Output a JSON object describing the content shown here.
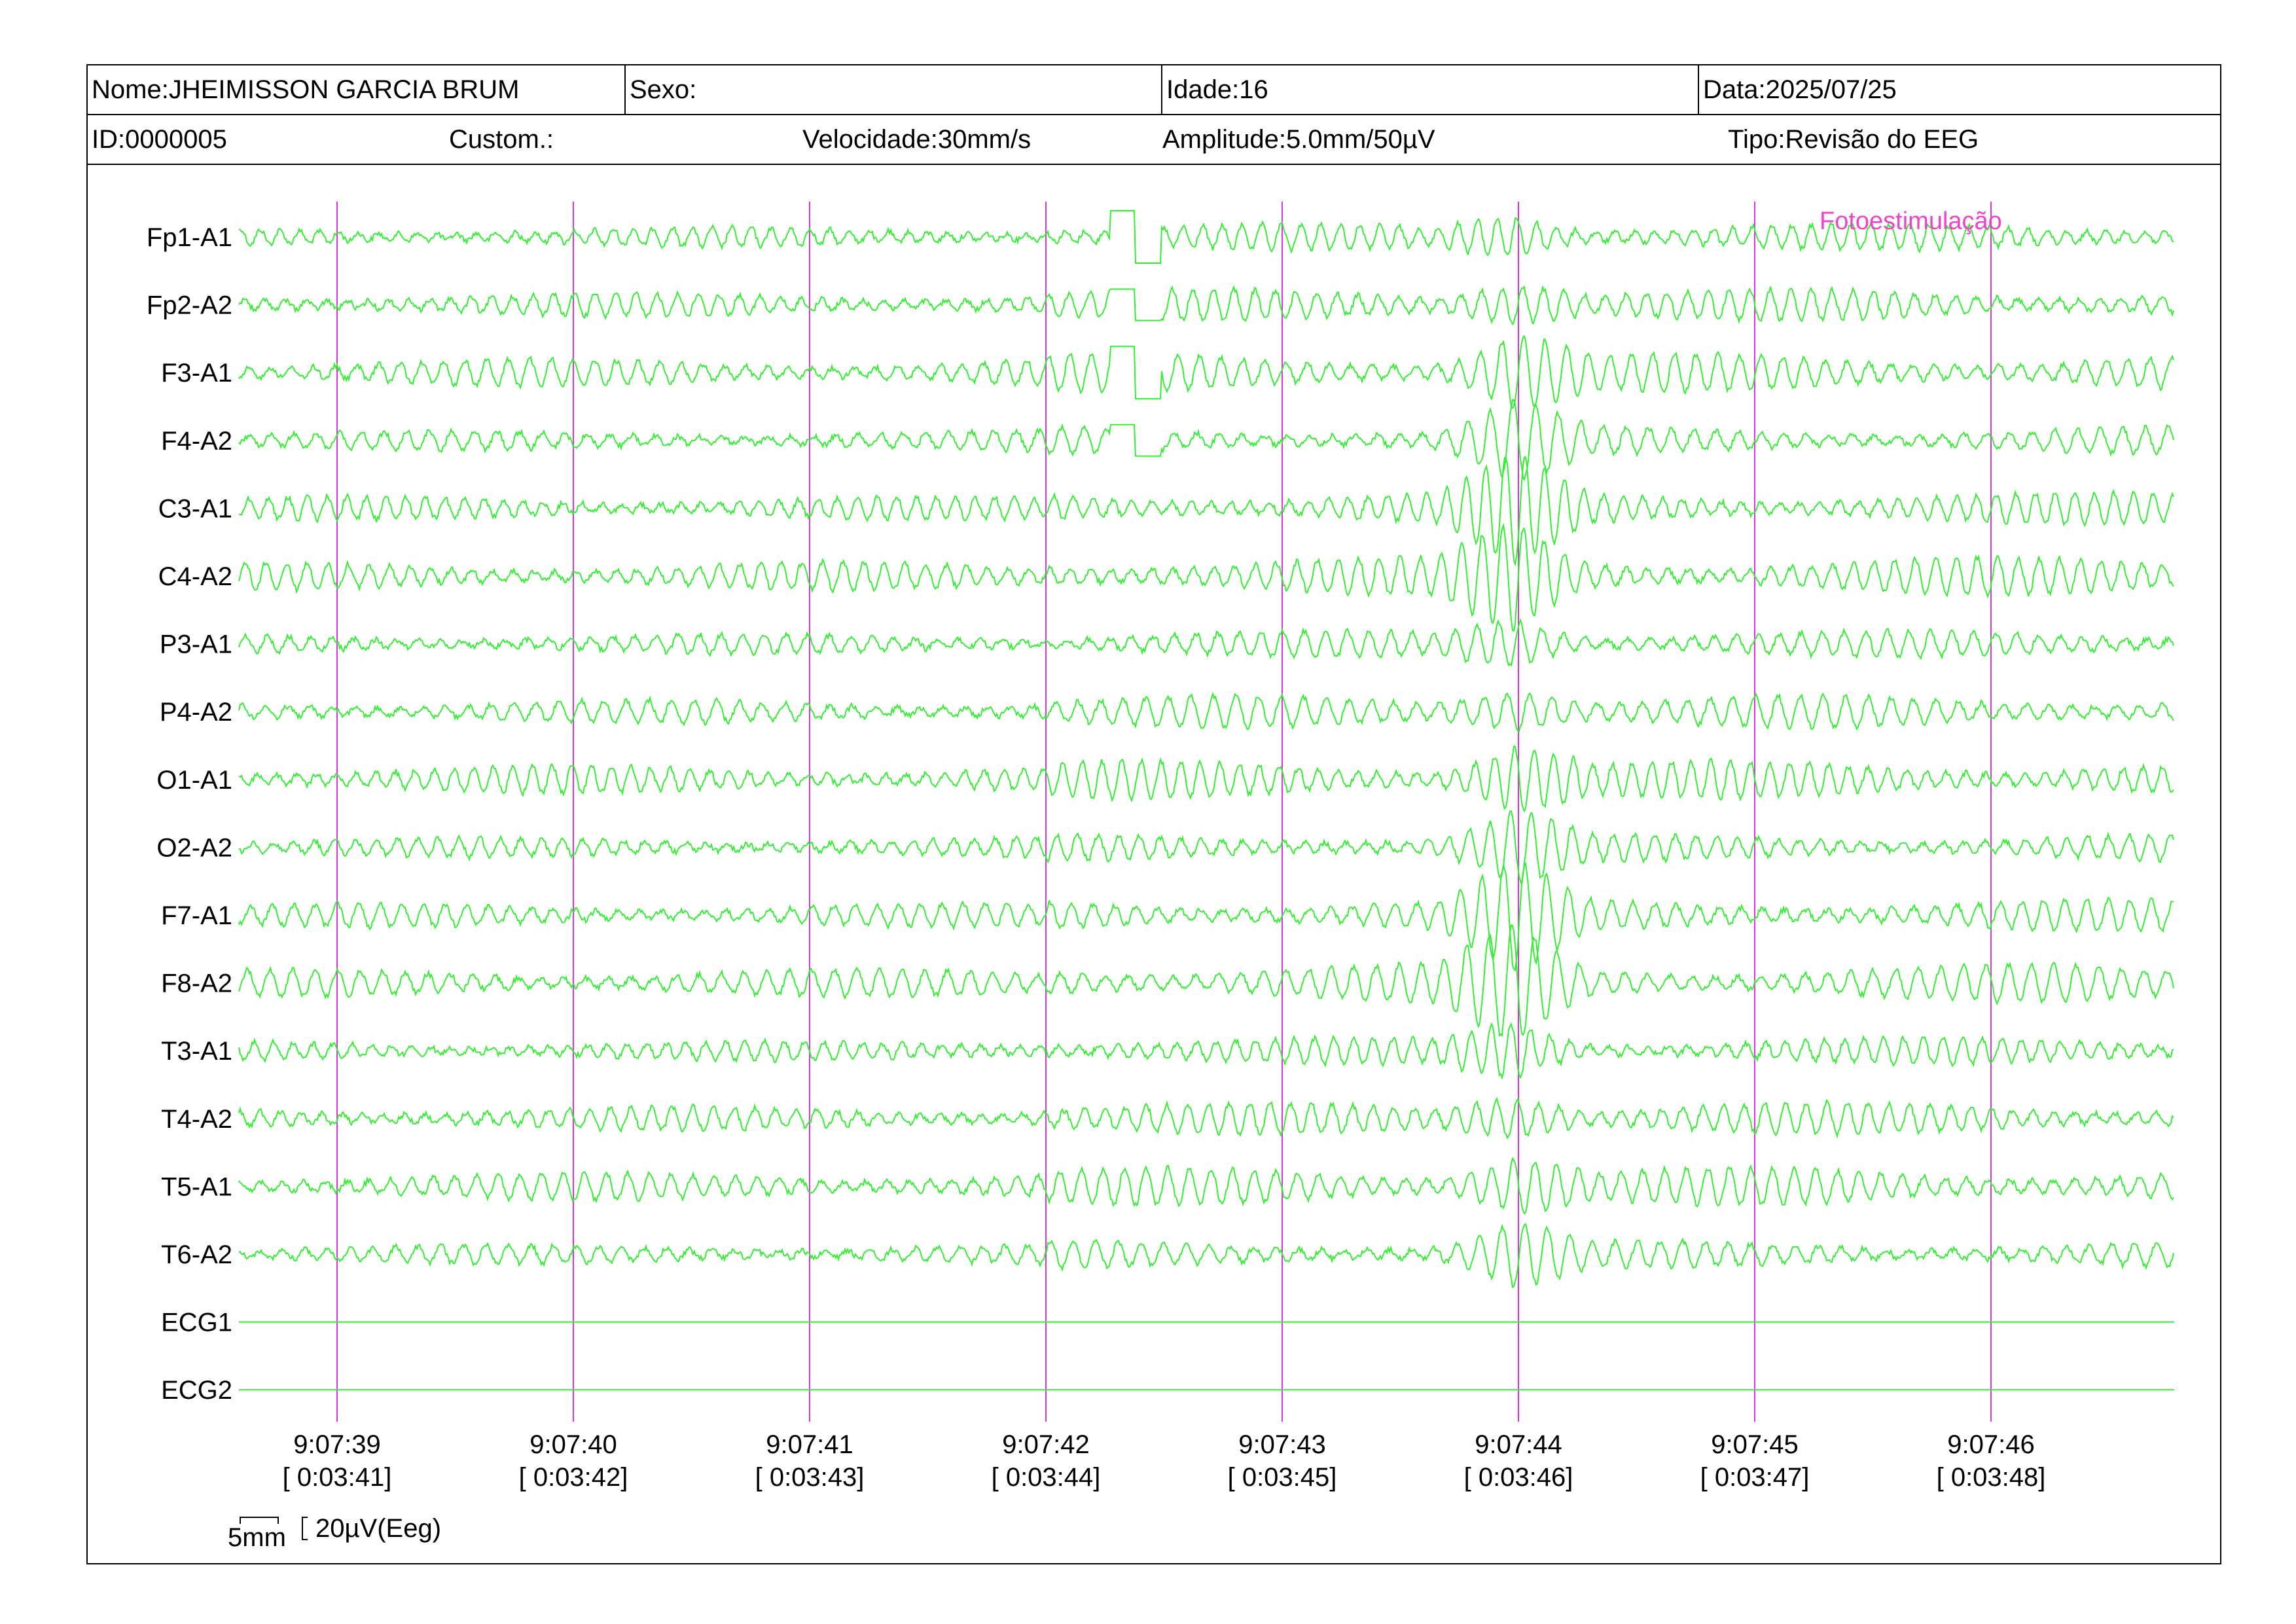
{
  "header": {
    "nome": "Nome:JHEIMISSON GARCIA BRUM",
    "sexo": "Sexo:",
    "idade": "Idade:16",
    "data": "Data:2025/07/25",
    "id": "ID:0000005",
    "custom": "Custom.:",
    "velocidade": "Velocidade:30mm/s",
    "amplitude": "Amplitude:5.0mm/50µV",
    "tipo": "Tipo:Revisão do EEG"
  },
  "annotation": "Fotoestimulação",
  "scale": {
    "time": "5mm",
    "amplitude": "20µV(Eeg)"
  },
  "colors": {
    "trace": "#33ee33",
    "marker": "#dd33dd",
    "annotation": "#ee44cc",
    "frame": "#000000"
  },
  "chart_data": {
    "type": "line",
    "title": "",
    "xlabel": "",
    "ylabel": "",
    "channels": [
      "Fp1-A1",
      "Fp2-A2",
      "F3-A1",
      "F4-A2",
      "C3-A1",
      "C4-A2",
      "P3-A1",
      "P4-A2",
      "O1-A1",
      "O2-A2",
      "F7-A1",
      "F8-A2",
      "T3-A1",
      "T4-A2",
      "T5-A1",
      "T6-A2",
      "ECG1",
      "ECG2"
    ],
    "time_ticks": [
      {
        "clock": "9:07:39",
        "elapsed": "[ 0:03:41]"
      },
      {
        "clock": "9:07:40",
        "elapsed": "[ 0:03:42]"
      },
      {
        "clock": "9:07:41",
        "elapsed": "[ 0:03:43]"
      },
      {
        "clock": "9:07:42",
        "elapsed": "[ 0:03:44]"
      },
      {
        "clock": "9:07:43",
        "elapsed": "[ 0:03:45]"
      },
      {
        "clock": "9:07:44",
        "elapsed": "[ 0:03:46]"
      },
      {
        "clock": "9:07:45",
        "elapsed": "[ 0:03:47]"
      },
      {
        "clock": "9:07:46",
        "elapsed": "[ 0:03:48]"
      }
    ],
    "grid": true
  }
}
